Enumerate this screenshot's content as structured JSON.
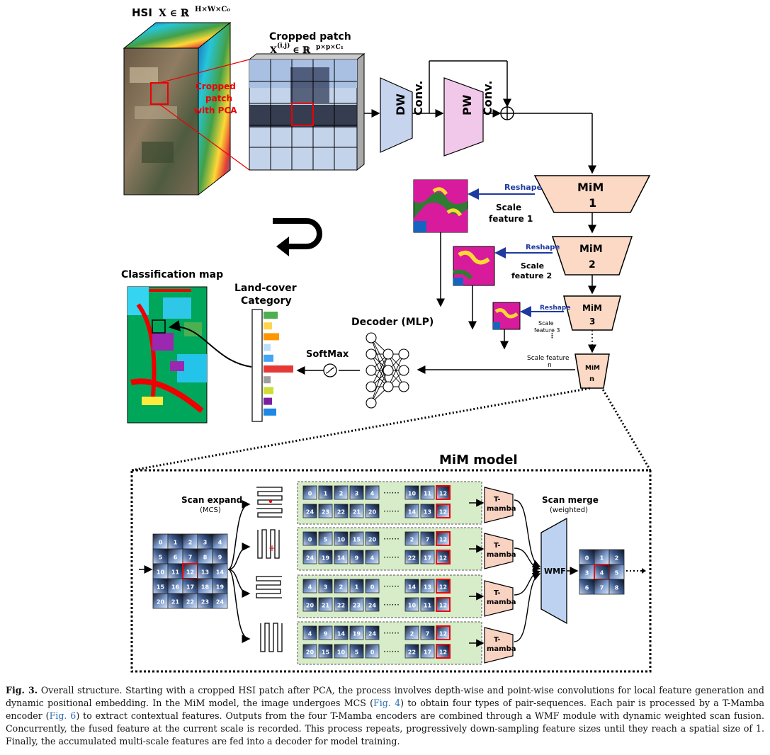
{
  "hsi_label": "HSI",
  "hsi_math": "X ∈ ℝ",
  "hsi_sup": "H×W×C₀",
  "cropped_patch": {
    "title": "Cropped patch",
    "math": "X",
    "sup": "(i,j)",
    "math2": " ∈ ℝ",
    "sup2": "p×p×C₁",
    "overlay": [
      "Cropped",
      "patch",
      "with PCA"
    ]
  },
  "dw_conv": [
    "DW",
    "Conv."
  ],
  "pw_conv": [
    "PW",
    "Conv."
  ],
  "mim_blocks": [
    {
      "name": "MiM",
      "index": "1",
      "scale_label": [
        "Scale",
        "feature 1"
      ]
    },
    {
      "name": "MiM",
      "index": "2",
      "scale_label": [
        "Scale",
        "feature 2"
      ]
    },
    {
      "name": "MiM",
      "index": "3",
      "scale_label": [
        "Scale",
        "feature 3"
      ]
    },
    {
      "name": "MiM",
      "index": "n",
      "scale_label": [
        "Scale feature",
        "n"
      ]
    }
  ],
  "reshape_label": "Reshape",
  "classification_map": "Classification map",
  "land_cover": [
    "Land-cover",
    "Category"
  ],
  "decoder": "Decoder (MLP)",
  "softmax": "SoftMax",
  "mim_model_title": "MiM model",
  "scan_expand": [
    "Scan expand",
    "(MCS)"
  ],
  "scan_merge": [
    "Scan merge",
    "(weighted)"
  ],
  "t_mamba": [
    "T-",
    "mamba"
  ],
  "wmf": "WMF",
  "grid_numbers": [
    [
      "0",
      "1",
      "2",
      "3",
      "4"
    ],
    [
      "5",
      "6",
      "7",
      "8",
      "9"
    ],
    [
      "10",
      "11",
      "12",
      "13",
      "14"
    ],
    [
      "15",
      "16",
      "17",
      "18",
      "19"
    ],
    [
      "20",
      "21",
      "22",
      "23",
      "24"
    ]
  ],
  "sequences": [
    {
      "top": [
        "0",
        "1",
        "2",
        "3",
        "4",
        "10",
        "11",
        "12"
      ],
      "bottom": [
        "24",
        "23",
        "22",
        "21",
        "20",
        "14",
        "13",
        "12"
      ]
    },
    {
      "top": [
        "0",
        "5",
        "10",
        "15",
        "20",
        "2",
        "7",
        "12"
      ],
      "bottom": [
        "24",
        "19",
        "14",
        "9",
        "4",
        "22",
        "17",
        "12"
      ]
    },
    {
      "top": [
        "4",
        "3",
        "2",
        "1",
        "0",
        "14",
        "13",
        "12"
      ],
      "bottom": [
        "20",
        "21",
        "22",
        "23",
        "24",
        "10",
        "11",
        "12"
      ]
    },
    {
      "top": [
        "4",
        "9",
        "14",
        "19",
        "24",
        "2",
        "7",
        "12"
      ],
      "bottom": [
        "20",
        "15",
        "10",
        "5",
        "0",
        "22",
        "17",
        "12"
      ]
    }
  ],
  "output_grid": [
    [
      "0",
      "1",
      "2"
    ],
    [
      "3",
      "4",
      "5"
    ],
    [
      "6",
      "7",
      "8"
    ]
  ],
  "legend_colors": [
    "#4caf50",
    "#ffd54f",
    "#ff9800",
    "#bbdefb",
    "#42a5f5",
    "#e53935",
    "#9e9e9e",
    "#cddc39",
    "#7b1fa2",
    "#1e88e5"
  ],
  "caption": {
    "label": "Fig. 3.",
    "text1": " Overall structure. Starting with a cropped HSI patch after PCA, the process involves depth-wise and point-wise convolutions for local feature generation and dynamic positional embedding. In the MiM model, the image undergoes MCS (",
    "ref1": "Fig. 4",
    "text2": ") to obtain four types of pair-sequences. Each pair is processed by a T-Mamba encoder (",
    "ref2": "Fig. 6",
    "text3": ") to extract contextual features. Outputs from the four T-Mamba encoders are combined through a WMF module with dynamic weighted scan fusion. Concurrently, the fused feature at the current scale is recorded. This process repeats, progressively down-sampling feature sizes until they reach a spatial size of 1. Finally, the accumulated multi-scale features are fed into a decoder for model training."
  }
}
